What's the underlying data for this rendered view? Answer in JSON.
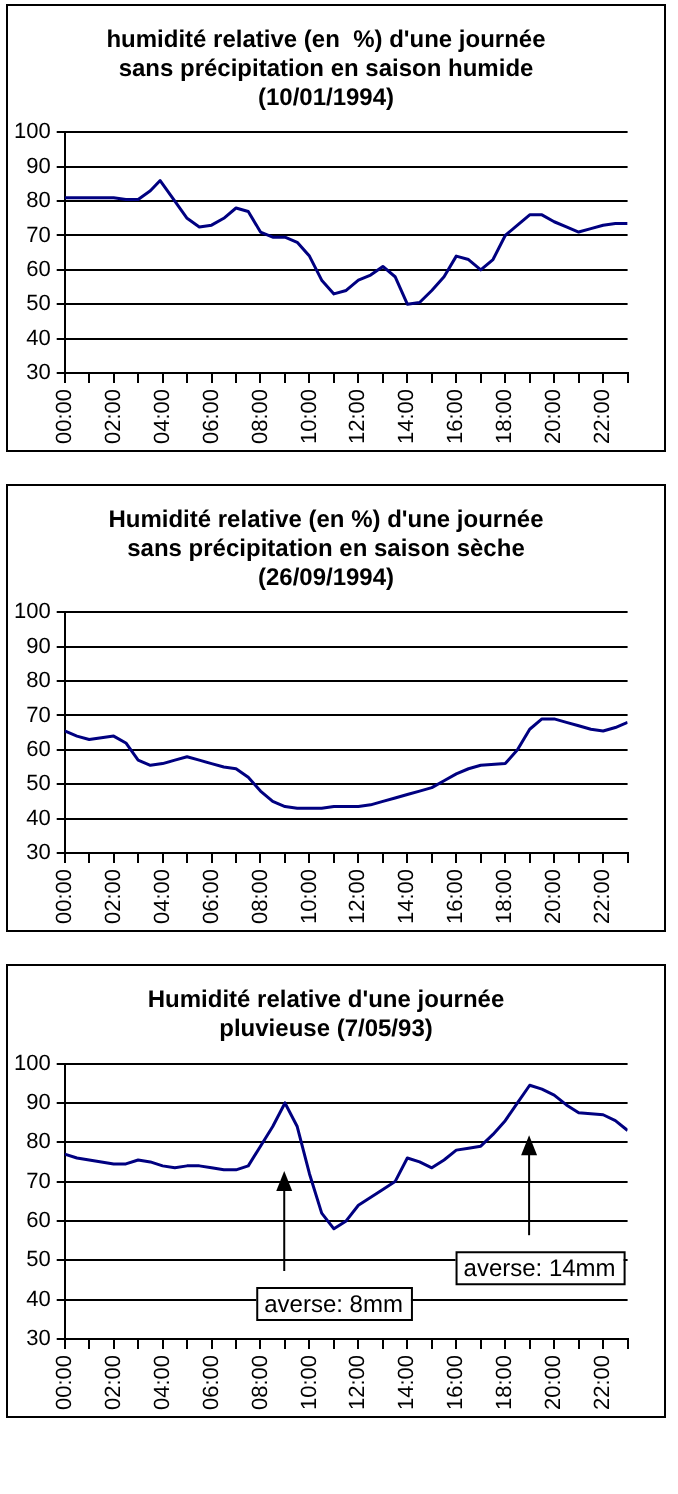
{
  "chart_data": [
    {
      "type": "line",
      "title": "humidité relative (en  %) d'une journée\nsans précipitation en saison humide\n(10/01/1994)",
      "xlim": [
        0,
        23
      ],
      "xticks": [
        {
          "value": 0,
          "label": "00:00"
        },
        {
          "value": 1,
          "label": null
        },
        {
          "value": 2,
          "label": "02:00"
        },
        {
          "value": 3,
          "label": null
        },
        {
          "value": 4,
          "label": "04:00"
        },
        {
          "value": 5,
          "label": null
        },
        {
          "value": 6,
          "label": "06:00"
        },
        {
          "value": 7,
          "label": null
        },
        {
          "value": 8,
          "label": "08:00"
        },
        {
          "value": 9,
          "label": null
        },
        {
          "value": 10,
          "label": "10:00"
        },
        {
          "value": 11,
          "label": null
        },
        {
          "value": 12,
          "label": "12:00"
        },
        {
          "value": 13,
          "label": null
        },
        {
          "value": 14,
          "label": "14:00"
        },
        {
          "value": 15,
          "label": null
        },
        {
          "value": 16,
          "label": "16:00"
        },
        {
          "value": 17,
          "label": null
        },
        {
          "value": 18,
          "label": "18:00"
        },
        {
          "value": 19,
          "label": null
        },
        {
          "value": 20,
          "label": "20:00"
        },
        {
          "value": 21,
          "label": null
        },
        {
          "value": 22,
          "label": "22:00"
        },
        {
          "value": 23,
          "label": null
        }
      ],
      "ylim": [
        30,
        100
      ],
      "yticks": [
        30,
        40,
        50,
        60,
        70,
        80,
        90,
        100
      ],
      "grid": "y",
      "legend": false,
      "marker": "none",
      "series": [
        {
          "color": "#000080",
          "x": [
            0,
            1,
            2,
            2.5,
            3,
            3.5,
            3.9,
            4.5,
            5,
            5.5,
            6,
            6.5,
            7,
            7.5,
            8,
            8.5,
            9,
            9.5,
            10,
            10.5,
            11,
            11.5,
            12,
            12.5,
            13,
            13.5,
            14,
            14.5,
            15,
            15.5,
            16,
            16.5,
            17,
            17.5,
            18,
            18.5,
            19,
            19.5,
            20,
            20.5,
            21,
            21.5,
            22,
            22.5,
            23
          ],
          "values": [
            81,
            81,
            81,
            80.5,
            80.5,
            83,
            86,
            80,
            75,
            72.5,
            73,
            75,
            78,
            77,
            71,
            69.5,
            69.5,
            68,
            64,
            57,
            53,
            54,
            57,
            58.5,
            61,
            58,
            50,
            50.5,
            54,
            58,
            64,
            63,
            60,
            63,
            70,
            73,
            76,
            76,
            74,
            72.5,
            71,
            72,
            73,
            73.5,
            73.5
          ]
        }
      ]
    },
    {
      "type": "line",
      "title": "Humidité relative (en %) d'une journée\nsans précipitation en saison sèche\n(26/09/1994)",
      "xlim": [
        0,
        23
      ],
      "xticks": [
        {
          "value": 0,
          "label": "00:00"
        },
        {
          "value": 1,
          "label": null
        },
        {
          "value": 2,
          "label": "02:00"
        },
        {
          "value": 3,
          "label": null
        },
        {
          "value": 4,
          "label": "04:00"
        },
        {
          "value": 5,
          "label": null
        },
        {
          "value": 6,
          "label": "06:00"
        },
        {
          "value": 7,
          "label": null
        },
        {
          "value": 8,
          "label": "08:00"
        },
        {
          "value": 9,
          "label": null
        },
        {
          "value": 10,
          "label": "10:00"
        },
        {
          "value": 11,
          "label": null
        },
        {
          "value": 12,
          "label": "12:00"
        },
        {
          "value": 13,
          "label": null
        },
        {
          "value": 14,
          "label": "14:00"
        },
        {
          "value": 15,
          "label": null
        },
        {
          "value": 16,
          "label": "16:00"
        },
        {
          "value": 17,
          "label": null
        },
        {
          "value": 18,
          "label": "18:00"
        },
        {
          "value": 19,
          "label": null
        },
        {
          "value": 20,
          "label": "20:00"
        },
        {
          "value": 21,
          "label": null
        },
        {
          "value": 22,
          "label": "22:00"
        },
        {
          "value": 23,
          "label": null
        }
      ],
      "ylim": [
        30,
        100
      ],
      "yticks": [
        30,
        40,
        50,
        60,
        70,
        80,
        90,
        100
      ],
      "grid": "y",
      "legend": false,
      "marker": "none",
      "series": [
        {
          "color": "#000080",
          "x": [
            0,
            0.5,
            1,
            1.5,
            2,
            2.5,
            3,
            3.5,
            4,
            4.5,
            5,
            5.5,
            6,
            6.5,
            7,
            7.5,
            8,
            8.5,
            9,
            9.5,
            10,
            10.5,
            11,
            12,
            12.5,
            13,
            13.5,
            14,
            14.5,
            15,
            15.5,
            16,
            16.5,
            17,
            18,
            18.5,
            19,
            19.5,
            20,
            20.5,
            21,
            21.5,
            22,
            22.5,
            23
          ],
          "values": [
            65.5,
            64,
            63,
            63.5,
            64,
            62,
            57,
            55.5,
            56,
            57,
            58,
            57,
            56,
            55,
            54.5,
            52,
            48,
            45,
            43.5,
            43,
            43,
            43,
            43.5,
            43.5,
            44,
            45,
            46,
            47,
            48,
            49,
            51,
            53,
            54.5,
            55.5,
            56,
            60,
            66,
            69,
            69,
            68,
            67,
            66,
            65.5,
            66.5,
            68
          ]
        }
      ]
    },
    {
      "type": "line",
      "title": "Humidité relative d'une journée\npluvieuse (7/05/93)",
      "xlim": [
        0,
        23
      ],
      "xticks": [
        {
          "value": 0,
          "label": "00:00"
        },
        {
          "value": 1,
          "label": null
        },
        {
          "value": 2,
          "label": "02:00"
        },
        {
          "value": 3,
          "label": null
        },
        {
          "value": 4,
          "label": "04:00"
        },
        {
          "value": 5,
          "label": null
        },
        {
          "value": 6,
          "label": "06:00"
        },
        {
          "value": 7,
          "label": null
        },
        {
          "value": 8,
          "label": "08:00"
        },
        {
          "value": 9,
          "label": null
        },
        {
          "value": 10,
          "label": "10:00"
        },
        {
          "value": 11,
          "label": null
        },
        {
          "value": 12,
          "label": "12:00"
        },
        {
          "value": 13,
          "label": null
        },
        {
          "value": 14,
          "label": "14:00"
        },
        {
          "value": 15,
          "label": null
        },
        {
          "value": 16,
          "label": "16:00"
        },
        {
          "value": 17,
          "label": null
        },
        {
          "value": 18,
          "label": "18:00"
        },
        {
          "value": 19,
          "label": null
        },
        {
          "value": 20,
          "label": "20:00"
        },
        {
          "value": 21,
          "label": null
        },
        {
          "value": 22,
          "label": "22:00"
        },
        {
          "value": 23,
          "label": null
        }
      ],
      "ylim": [
        30,
        100
      ],
      "yticks": [
        30,
        40,
        50,
        60,
        70,
        80,
        90,
        100
      ],
      "grid": "y",
      "legend": false,
      "marker": "none",
      "annotations": [
        "averse: 8mm",
        "averse: 14mm"
      ],
      "series": [
        {
          "color": "#000080",
          "x": [
            0,
            0.5,
            1,
            1.5,
            2,
            2.5,
            3,
            3.5,
            4,
            4.5,
            5,
            5.5,
            6,
            6.5,
            7,
            7.5,
            8,
            8.5,
            9,
            9.5,
            10,
            10.5,
            11,
            11.5,
            12,
            13,
            13.5,
            14,
            14.5,
            15,
            15.5,
            16,
            16.5,
            17,
            17.5,
            18,
            18.5,
            19,
            19.5,
            20,
            20.5,
            21,
            22,
            22.5,
            23
          ],
          "values": [
            77,
            76,
            75.5,
            75,
            74.5,
            74.5,
            75.5,
            75,
            74,
            73.5,
            74,
            74,
            73.5,
            73,
            73,
            74,
            79,
            84,
            90,
            84,
            72,
            62,
            58,
            60,
            64,
            68,
            70,
            76,
            75,
            73.5,
            75.5,
            78,
            78.5,
            79,
            82,
            85.5,
            90,
            94.5,
            93.5,
            92,
            89.5,
            87.5,
            87,
            85.5,
            83
          ]
        }
      ]
    }
  ]
}
